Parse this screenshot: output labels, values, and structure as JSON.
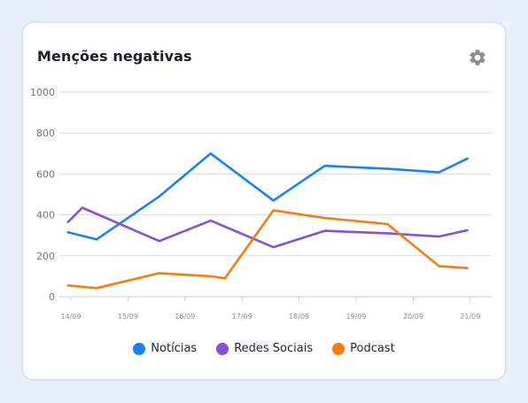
{
  "header": {
    "title": "Menções negativas"
  },
  "icons": {
    "settings": "gear-icon"
  },
  "colors": {
    "Notícias": "#1a82f0",
    "Redes Sociais": "#8a4fd2",
    "Podcast": "#f57c11"
  },
  "chart_data": {
    "type": "line",
    "x": [
      "14/09",
      "15/09",
      "16/09",
      "17/09",
      "18/09",
      "19/09",
      "20/09",
      "21/09"
    ],
    "ylim": [
      0,
      1000
    ],
    "yticks": [
      0,
      200,
      400,
      600,
      800,
      1000
    ],
    "grid": true,
    "legend": "bottom",
    "series": [
      {
        "name": "Notícias",
        "points": [
          [
            -0.05,
            315
          ],
          [
            0.45,
            280
          ],
          [
            1.55,
            490
          ],
          [
            2.45,
            700
          ],
          [
            3.55,
            470
          ],
          [
            4.45,
            640
          ],
          [
            5.55,
            625
          ],
          [
            6.45,
            608
          ],
          [
            6.95,
            675
          ]
        ]
      },
      {
        "name": "Redes Sociais",
        "points": [
          [
            -0.05,
            365
          ],
          [
            0.2,
            435
          ],
          [
            1.55,
            272
          ],
          [
            2.45,
            372
          ],
          [
            3.55,
            242
          ],
          [
            4.45,
            322
          ],
          [
            5.55,
            310
          ],
          [
            6.45,
            294
          ],
          [
            6.95,
            325
          ]
        ]
      },
      {
        "name": "Podcast",
        "points": [
          [
            -0.05,
            55
          ],
          [
            0.45,
            42
          ],
          [
            1.55,
            115
          ],
          [
            2.45,
            100
          ],
          [
            2.7,
            90
          ],
          [
            3.55,
            422
          ],
          [
            4.45,
            385
          ],
          [
            5.55,
            355
          ],
          [
            6.45,
            150
          ],
          [
            6.95,
            140
          ]
        ]
      }
    ]
  }
}
